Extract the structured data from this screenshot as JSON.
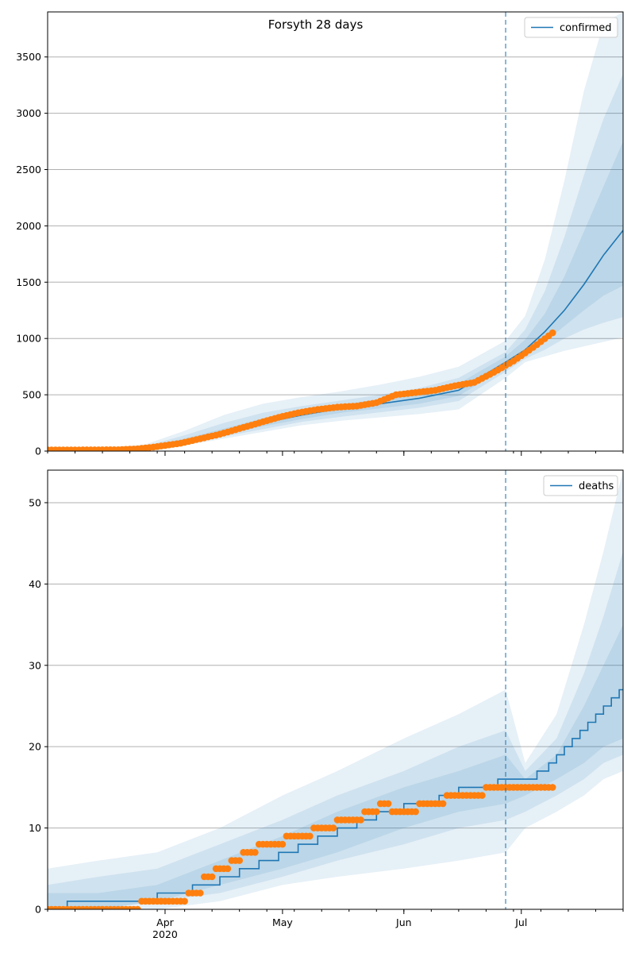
{
  "colors": {
    "model_line": "#1f77b4",
    "observed_points": "#ff7f0e",
    "band": "#1f77b4",
    "grid": "#b0b0b0",
    "forecast_start_line": "#1f77b4"
  },
  "chart_data": [
    {
      "type": "line",
      "title": "Forsyth 28 days",
      "xlabel": "",
      "ylabel": "",
      "x_range": [
        "2020-03-02",
        "2020-07-27"
      ],
      "ylim": [
        0,
        3900
      ],
      "yticks": [
        0,
        500,
        1000,
        1500,
        2000,
        2500,
        3000,
        3500
      ],
      "ytick_labels": [
        "0",
        "500",
        "1000",
        "1500",
        "2000",
        "2500",
        "3000",
        "3500"
      ],
      "xticks": [
        "2020-04-01",
        "2020-05-01",
        "2020-06-01",
        "2020-07-01"
      ],
      "xtick_labels": [],
      "grid": "y-major",
      "legend": {
        "placement": "top-right",
        "entries": [
          "confirmed"
        ]
      },
      "forecast_start": "2020-06-27",
      "series": [
        {
          "name": "confirmed",
          "kind": "model-median",
          "x": [
            "2020-03-02",
            "2020-03-20",
            "2020-03-27",
            "2020-04-06",
            "2020-04-16",
            "2020-04-26",
            "2020-05-06",
            "2020-05-16",
            "2020-05-26",
            "2020-06-05",
            "2020-06-15",
            "2020-06-27",
            "2020-07-02",
            "2020-07-07",
            "2020-07-12",
            "2020-07-17",
            "2020-07-22",
            "2020-07-27"
          ],
          "y": [
            10,
            12,
            30,
            90,
            170,
            250,
            320,
            380,
            420,
            470,
            540,
            790,
            900,
            1060,
            1250,
            1480,
            1740,
            1960
          ]
        },
        {
          "name": "confirmed",
          "kind": "observed",
          "x": [
            "2020-03-02",
            "2020-03-20",
            "2020-03-25",
            "2020-03-30",
            "2020-04-05",
            "2020-04-10",
            "2020-04-15",
            "2020-04-20",
            "2020-04-25",
            "2020-04-30",
            "2020-05-05",
            "2020-05-10",
            "2020-05-15",
            "2020-05-20",
            "2020-05-25",
            "2020-05-30",
            "2020-06-04",
            "2020-06-09",
            "2020-06-14",
            "2020-06-19",
            "2020-06-24",
            "2020-06-29",
            "2020-07-04",
            "2020-07-09"
          ],
          "y": [
            10,
            12,
            20,
            40,
            70,
            110,
            150,
            200,
            250,
            300,
            340,
            370,
            390,
            400,
            430,
            500,
            520,
            540,
            580,
            610,
            700,
            800,
            920,
            1050
          ]
        }
      ],
      "bands": [
        {
          "x": [
            "2020-03-02",
            "2020-03-20",
            "2020-03-27",
            "2020-04-06",
            "2020-04-16",
            "2020-04-26",
            "2020-05-06",
            "2020-05-16",
            "2020-05-26",
            "2020-06-05",
            "2020-06-15",
            "2020-06-27",
            "2020-07-02",
            "2020-07-07",
            "2020-07-12",
            "2020-07-17",
            "2020-07-22",
            "2020-07-27"
          ],
          "lower": [
            0,
            0,
            5,
            50,
            110,
            170,
            230,
            270,
            300,
            330,
            370,
            650,
            790,
            840,
            890,
            930,
            970,
            1010
          ],
          "upper": [
            30,
            35,
            60,
            180,
            320,
            420,
            480,
            530,
            590,
            660,
            750,
            980,
            1200,
            1700,
            2400,
            3200,
            3800,
            3900
          ]
        },
        {
          "x": [
            "2020-03-02",
            "2020-03-20",
            "2020-03-27",
            "2020-04-06",
            "2020-04-16",
            "2020-04-26",
            "2020-05-06",
            "2020-05-16",
            "2020-05-26",
            "2020-06-05",
            "2020-06-15",
            "2020-06-27",
            "2020-07-02",
            "2020-07-07",
            "2020-07-12",
            "2020-07-17",
            "2020-07-22",
            "2020-07-27"
          ],
          "lower": [
            2,
            3,
            15,
            65,
            130,
            195,
            260,
            305,
            345,
            385,
            445,
            705,
            820,
            900,
            1000,
            1080,
            1140,
            1190
          ],
          "upper": [
            20,
            22,
            45,
            140,
            250,
            340,
            400,
            450,
            500,
            560,
            650,
            880,
            1080,
            1420,
            1900,
            2450,
            2950,
            3350
          ]
        },
        {
          "x": [
            "2020-03-02",
            "2020-03-20",
            "2020-03-27",
            "2020-04-06",
            "2020-04-16",
            "2020-04-26",
            "2020-05-06",
            "2020-05-16",
            "2020-05-26",
            "2020-06-05",
            "2020-06-15",
            "2020-06-27",
            "2020-07-02",
            "2020-07-07",
            "2020-07-12",
            "2020-07-17",
            "2020-07-22",
            "2020-07-27"
          ],
          "lower": [
            5,
            6,
            22,
            75,
            145,
            220,
            285,
            340,
            380,
            420,
            490,
            745,
            850,
            970,
            1110,
            1250,
            1380,
            1470
          ],
          "upper": [
            15,
            17,
            38,
            110,
            200,
            290,
            360,
            415,
            460,
            520,
            600,
            840,
            990,
            1220,
            1550,
            1950,
            2350,
            2750
          ]
        }
      ]
    },
    {
      "type": "line",
      "title": "",
      "xlabel": "",
      "ylabel": "",
      "x_range": [
        "2020-03-02",
        "2020-07-27"
      ],
      "ylim": [
        0,
        54
      ],
      "yticks": [
        0,
        10,
        20,
        30,
        40,
        50
      ],
      "ytick_labels": [
        "0",
        "10",
        "20",
        "30",
        "40",
        "50"
      ],
      "xticks": [
        "2020-04-01",
        "2020-05-01",
        "2020-06-01",
        "2020-07-01"
      ],
      "xtick_labels": [
        "Apr\n2020",
        "May",
        "Jun",
        "Jul"
      ],
      "grid": "y-major",
      "legend": {
        "placement": "top-right",
        "entries": [
          "deaths"
        ]
      },
      "forecast_start": "2020-06-27",
      "series": [
        {
          "name": "deaths",
          "kind": "model-median",
          "step": true,
          "x": [
            "2020-03-02",
            "2020-03-07",
            "2020-03-30",
            "2020-04-08",
            "2020-04-15",
            "2020-04-20",
            "2020-04-25",
            "2020-04-30",
            "2020-05-05",
            "2020-05-10",
            "2020-05-15",
            "2020-05-20",
            "2020-05-25",
            "2020-06-01",
            "2020-06-05",
            "2020-06-10",
            "2020-06-15",
            "2020-06-20",
            "2020-06-25",
            "2020-07-01",
            "2020-07-05",
            "2020-07-08",
            "2020-07-10",
            "2020-07-12",
            "2020-07-14",
            "2020-07-16",
            "2020-07-18",
            "2020-07-20",
            "2020-07-22",
            "2020-07-24",
            "2020-07-26"
          ],
          "y": [
            0,
            1,
            2,
            3,
            4,
            5,
            6,
            7,
            8,
            9,
            10,
            11,
            12,
            13,
            13,
            14,
            15,
            15,
            16,
            16,
            17,
            18,
            19,
            20,
            21,
            22,
            23,
            24,
            25,
            26,
            27
          ]
        },
        {
          "name": "deaths",
          "kind": "observed",
          "x": [
            "2020-03-02",
            "2020-03-26",
            "2020-04-07",
            "2020-04-11",
            "2020-04-14",
            "2020-04-18",
            "2020-04-21",
            "2020-04-25",
            "2020-05-02",
            "2020-05-09",
            "2020-05-15",
            "2020-05-22",
            "2020-05-26",
            "2020-05-29",
            "2020-06-05",
            "2020-06-12",
            "2020-06-22",
            "2020-07-09"
          ],
          "y": [
            0,
            1,
            2,
            4,
            5,
            6,
            7,
            8,
            9,
            10,
            11,
            12,
            13,
            12,
            13,
            14,
            15,
            15
          ]
        }
      ],
      "bands": [
        {
          "x": [
            "2020-03-02",
            "2020-03-15",
            "2020-03-30",
            "2020-04-15",
            "2020-05-01",
            "2020-05-15",
            "2020-06-01",
            "2020-06-15",
            "2020-06-27",
            "2020-07-02",
            "2020-07-10",
            "2020-07-17",
            "2020-07-22",
            "2020-07-27"
          ],
          "lower": [
            0,
            0,
            0,
            1,
            3,
            4,
            5,
            6,
            7,
            10,
            12,
            14,
            16,
            17
          ],
          "upper": [
            5,
            6,
            7,
            10,
            14,
            17,
            21,
            24,
            27,
            18,
            24,
            35,
            44,
            54
          ]
        },
        {
          "x": [
            "2020-03-02",
            "2020-03-15",
            "2020-03-30",
            "2020-04-15",
            "2020-05-01",
            "2020-05-15",
            "2020-06-01",
            "2020-06-15",
            "2020-06-27",
            "2020-07-02",
            "2020-07-10",
            "2020-07-17",
            "2020-07-22",
            "2020-07-27"
          ],
          "lower": [
            0,
            0,
            1,
            2,
            4,
            6,
            8,
            10,
            11,
            12,
            14,
            16,
            18,
            19
          ],
          "upper": [
            3,
            4,
            5,
            8,
            11,
            14,
            17,
            20,
            22,
            17,
            21,
            29,
            36,
            44
          ]
        },
        {
          "x": [
            "2020-03-02",
            "2020-03-15",
            "2020-03-30",
            "2020-04-15",
            "2020-05-01",
            "2020-05-15",
            "2020-06-01",
            "2020-06-15",
            "2020-06-27",
            "2020-07-02",
            "2020-07-10",
            "2020-07-17",
            "2020-07-22",
            "2020-07-27"
          ],
          "lower": [
            0,
            0,
            1,
            3,
            5,
            7,
            10,
            12,
            13,
            14,
            16,
            18,
            20,
            21
          ],
          "upper": [
            2,
            2,
            3,
            6,
            9,
            12,
            15,
            17,
            19,
            16,
            19,
            25,
            30,
            35
          ]
        }
      ]
    }
  ]
}
